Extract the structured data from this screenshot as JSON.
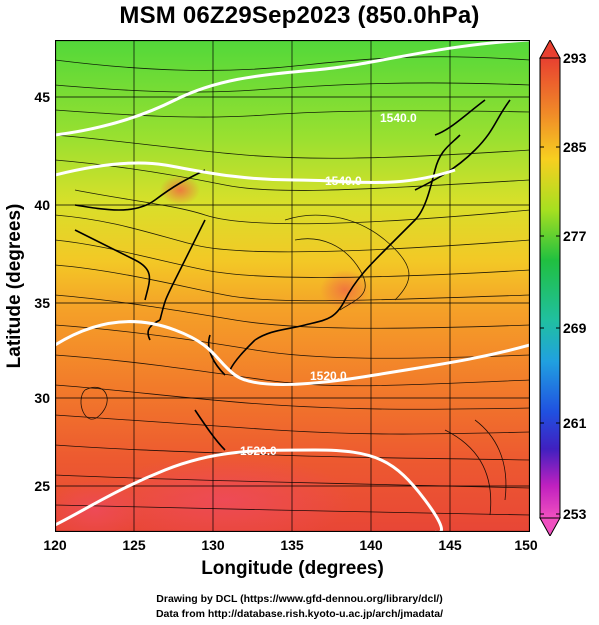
{
  "title": "MSM 06Z29Sep2023 (850.0hPa)",
  "xlabel": "Longitude (degrees)",
  "ylabel": "Latitude  (degrees)",
  "x_ticks": [
    "120",
    "125",
    "130",
    "135",
    "140",
    "145",
    "150"
  ],
  "y_ticks": [
    "45",
    "40",
    "35",
    "30",
    "25"
  ],
  "colorbar": {
    "labels": [
      "293",
      "285",
      "277",
      "269",
      "261",
      "253"
    ],
    "colors": [
      "#e84030",
      "#f08a28",
      "#f7cf20",
      "#a7e020",
      "#20c040",
      "#20c0a0",
      "#20a0e0",
      "#2050e0",
      "#4020c0",
      "#c020c0",
      "#f050c0"
    ]
  },
  "contours": [
    {
      "label": "1520.0"
    },
    {
      "label": "1520.0"
    },
    {
      "label": "1540.0"
    },
    {
      "label": "1540.0"
    }
  ],
  "credits": {
    "line1": "Drawing by DCL (https://www.gfd-dennou.org/library/dcl/)",
    "line2": "Data from http://database.rish.kyoto-u.ac.jp/arch/jmadata/"
  }
}
